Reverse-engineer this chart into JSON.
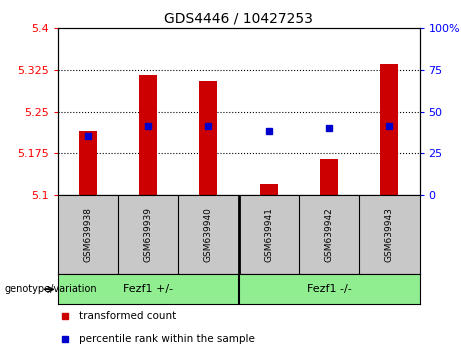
{
  "title": "GDS4446 / 10427253",
  "samples": [
    "GSM639938",
    "GSM639939",
    "GSM639940",
    "GSM639941",
    "GSM639942",
    "GSM639943"
  ],
  "bar_bottoms": [
    5.1,
    5.1,
    5.1,
    5.1,
    5.1,
    5.1
  ],
  "bar_tops": [
    5.215,
    5.315,
    5.305,
    5.12,
    5.165,
    5.335
  ],
  "percentile_y": [
    5.206,
    5.223,
    5.224,
    5.214,
    5.22,
    5.224
  ],
  "ylim": [
    5.1,
    5.4
  ],
  "ylim_right": [
    0,
    100
  ],
  "yticks_left": [
    5.1,
    5.175,
    5.25,
    5.325,
    5.4
  ],
  "yticks_right": [
    0,
    25,
    50,
    75,
    100
  ],
  "ytick_right_labels": [
    "0",
    "25",
    "50",
    "75",
    "100%"
  ],
  "bar_color": "#cc0000",
  "percentile_color": "#0000cc",
  "group1_label": "Fezf1 +/-",
  "group2_label": "Fezf1 -/-",
  "group1_count": 3,
  "group2_count": 3,
  "genotype_label": "genotype/variation",
  "legend_red": "transformed count",
  "legend_blue": "percentile rank within the sample",
  "group_bg_color": "#90EE90",
  "sample_bg_color": "#c8c8c8",
  "plot_bg_color": "#ffffff",
  "bar_width": 0.3,
  "title_fontsize": 10,
  "tick_fontsize": 8,
  "sample_fontsize": 6.5,
  "legend_fontsize": 7.5,
  "geno_fontsize": 8
}
